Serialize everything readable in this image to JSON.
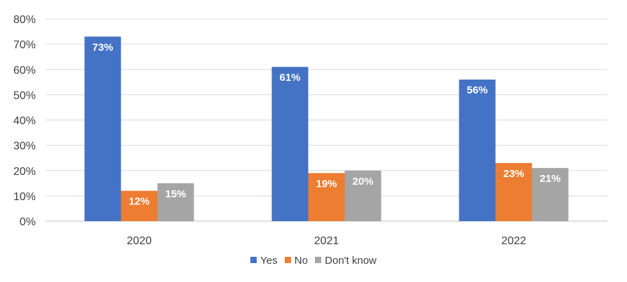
{
  "chart_data": {
    "type": "bar",
    "categories": [
      "2020",
      "2021",
      "2022"
    ],
    "series": [
      {
        "name": "Yes",
        "values": [
          73,
          61,
          56
        ],
        "labels": [
          "73%",
          "61%",
          "56%"
        ],
        "color": "#4472C4"
      },
      {
        "name": "No",
        "values": [
          12,
          19,
          23
        ],
        "labels": [
          "12%",
          "19%",
          "23%"
        ],
        "color": "#ED7D31"
      },
      {
        "name": "Don't know",
        "values": [
          15,
          20,
          21
        ],
        "labels": [
          "15%",
          "20%",
          "21%"
        ],
        "color": "#A5A5A5"
      }
    ],
    "y_ticks": [
      "0%",
      "10%",
      "20%",
      "30%",
      "40%",
      "50%",
      "60%",
      "70%",
      "80%"
    ],
    "ylim": [
      0,
      80
    ],
    "grid": true,
    "legend": "bottom"
  }
}
